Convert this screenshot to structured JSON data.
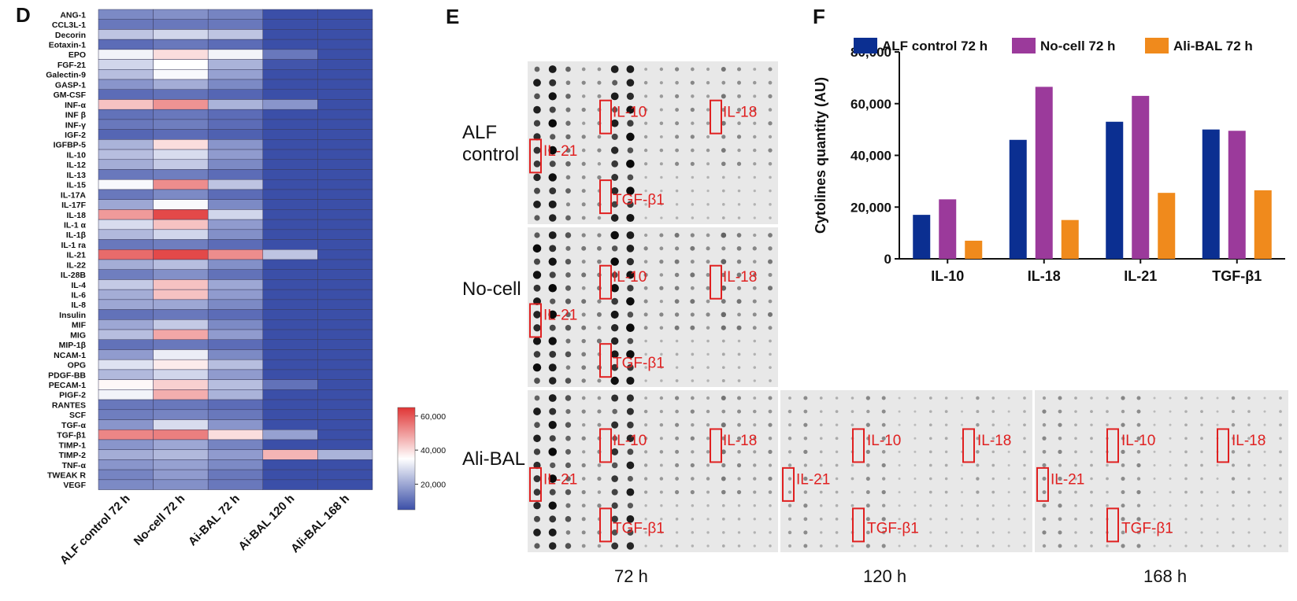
{
  "panels": {
    "d": "D",
    "e": "E",
    "f": "F"
  },
  "chart_data": [
    {
      "type": "heatmap",
      "rows": [
        "ANG-1",
        "CCL3L-1",
        "Decorin",
        "Eotaxin-1",
        "EPO",
        "FGF-21",
        "Galectin-9",
        "GASP-1",
        "GM-CSF",
        "INF-α",
        "INF β",
        "INF-γ",
        "IGF-2",
        "IGFBP-5",
        "IL-10",
        "IL-12",
        "IL-13",
        "IL-15",
        "IL-17A",
        "IL-17F",
        "IL-18",
        "IL-1 α",
        "IL-1β",
        "IL-1 ra",
        "IL-21",
        "IL-22",
        "IL-28B",
        "IL-4",
        "IL-6",
        "IL-8",
        "Insulin",
        "MIF",
        "MIG",
        "MIP-1β",
        "NCAM-1",
        "OPG",
        "PDGF-BB",
        "PECAM-1",
        "PIGF-2",
        "RANTES",
        "SCF",
        "TGF-α",
        "TGF-β1",
        "TIMP-1",
        "TIMP-2",
        "TNF-α",
        "TWEAK R",
        "VEGF"
      ],
      "columns": [
        "ALF control 72 h",
        "No-cell 72 h",
        "Ai-BAL 72 h",
        "Ai-BAL 120 h",
        "Ali-BAL 168 h"
      ],
      "values": [
        [
          15000,
          16000,
          14000,
          5000,
          5000
        ],
        [
          12000,
          12000,
          12000,
          5000,
          5000
        ],
        [
          25000,
          28000,
          25000,
          5000,
          5000
        ],
        [
          10000,
          12000,
          10000,
          5000,
          5000
        ],
        [
          33000,
          40000,
          33000,
          12000,
          5000
        ],
        [
          28000,
          35000,
          22000,
          6000,
          5000
        ],
        [
          24000,
          34000,
          19000,
          5000,
          5000
        ],
        [
          17000,
          21000,
          15000,
          5000,
          5000
        ],
        [
          10000,
          11000,
          9000,
          5000,
          5000
        ],
        [
          44000,
          51000,
          22000,
          17000,
          5000
        ],
        [
          11000,
          12000,
          10000,
          5000,
          5000
        ],
        [
          12000,
          13000,
          10000,
          5000,
          5000
        ],
        [
          9000,
          10000,
          8000,
          5000,
          5000
        ],
        [
          22000,
          40000,
          17000,
          5000,
          5000
        ],
        [
          24000,
          29000,
          18000,
          5000,
          5000
        ],
        [
          21000,
          26000,
          15000,
          5000,
          5000
        ],
        [
          12000,
          13000,
          10000,
          5000,
          5000
        ],
        [
          34000,
          52000,
          25000,
          5000,
          5000
        ],
        [
          12000,
          15000,
          10000,
          5000,
          5000
        ],
        [
          20000,
          34000,
          15000,
          5000,
          5000
        ],
        [
          50000,
          62000,
          28000,
          5000,
          5000
        ],
        [
          29000,
          44000,
          18000,
          5000,
          5000
        ],
        [
          23000,
          28000,
          16000,
          5000,
          5000
        ],
        [
          12000,
          13000,
          10000,
          5000,
          5000
        ],
        [
          57000,
          62000,
          52000,
          25000,
          5000
        ],
        [
          21000,
          24000,
          16000,
          5000,
          5000
        ],
        [
          13000,
          16000,
          11000,
          5000,
          5000
        ],
        [
          26000,
          44000,
          20000,
          5000,
          5000
        ],
        [
          21000,
          44000,
          18000,
          5000,
          5000
        ],
        [
          20000,
          20000,
          15000,
          5000,
          5000
        ],
        [
          11000,
          12000,
          10000,
          5000,
          5000
        ],
        [
          20000,
          26000,
          15000,
          5000,
          5000
        ],
        [
          24000,
          48000,
          18000,
          5000,
          5000
        ],
        [
          11000,
          12000,
          10000,
          5000,
          5000
        ],
        [
          18000,
          32000,
          15000,
          5000,
          5000
        ],
        [
          30000,
          38000,
          24000,
          5000,
          5000
        ],
        [
          23000,
          28000,
          18000,
          5000,
          5000
        ],
        [
          36000,
          42000,
          24000,
          11000,
          5000
        ],
        [
          33000,
          47000,
          22000,
          5000,
          5000
        ],
        [
          12000,
          12000,
          10000,
          5000,
          5000
        ],
        [
          13000,
          14000,
          12000,
          5000,
          5000
        ],
        [
          17000,
          29000,
          17000,
          5000,
          5000
        ],
        [
          53000,
          54000,
          40000,
          19000,
          5000
        ],
        [
          17000,
          20000,
          14000,
          5000,
          5000
        ],
        [
          21000,
          23000,
          18000,
          46000,
          22000
        ],
        [
          17000,
          19000,
          15000,
          5000,
          5000
        ],
        [
          14000,
          18000,
          12000,
          5000,
          5000
        ],
        [
          15000,
          16000,
          12000,
          5000,
          5000
        ]
      ],
      "colorbar": {
        "ticks": [
          "60,000",
          "40,000",
          "20,000"
        ],
        "min": 5000,
        "max": 65000,
        "low_color": "#3b4fa8",
        "mid_color": "#ffffff",
        "high_color": "#e03535"
      }
    },
    {
      "type": "bar",
      "categories": [
        "IL-10",
        "IL-18",
        "IL-21",
        "TGF-β1"
      ],
      "series": [
        {
          "name": "ALF control 72 h",
          "color": "#0b2f91",
          "values": [
            17000,
            46000,
            53000,
            50000
          ]
        },
        {
          "name": "No-cell 72 h",
          "color": "#9b3a9b",
          "values": [
            23000,
            66500,
            63000,
            49500
          ]
        },
        {
          "name": "Ali-BAL 72 h",
          "color": "#f08a1c",
          "values": [
            7000,
            15000,
            25500,
            26500
          ]
        }
      ],
      "ylabel": "Cytolines quantity (AU)",
      "yticks": [
        "0",
        "20,000",
        "40,000",
        "60,000",
        "80,000"
      ],
      "ylim": [
        0,
        80000
      ],
      "legend": "top"
    }
  ],
  "blots": {
    "row_labels": [
      "ALF\ncontrol",
      "No-cell",
      "Ali-BAL"
    ],
    "time_labels": [
      "72 h",
      "120 h",
      "168 h"
    ],
    "marker_labels": {
      "il10": "IL-10",
      "il18": "IL-18",
      "il21": "IL-21",
      "tgfb1": "TGF-β1"
    },
    "box_color": "#e02020"
  }
}
